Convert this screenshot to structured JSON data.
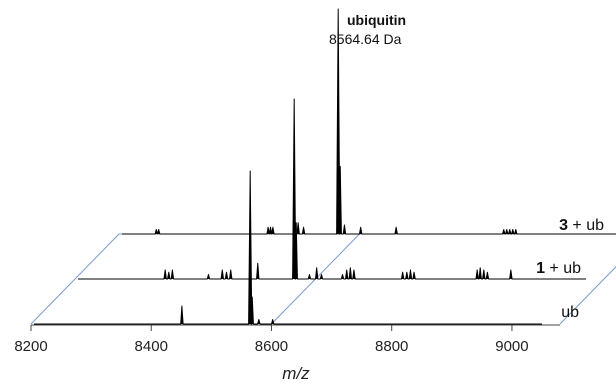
{
  "chart_data": {
    "type": "line",
    "subtype": "stacked 3D mass spectra",
    "xlabel": "m/z",
    "xlim": [
      8200,
      9050
    ],
    "x_ticks": [
      "8200",
      "8400",
      "8600",
      "8800",
      "9000"
    ],
    "x_tick_values": [
      8200,
      8400,
      8600,
      8800,
      9000
    ],
    "frame_color": "#7a9ccf",
    "trace_color": "#000000",
    "series": [
      {
        "name": "ub",
        "label_prefix": "",
        "label_suffix": "ub",
        "peaks": [
          {
            "mz": 8451,
            "rel": 0.08
          },
          {
            "mz": 8564.6,
            "rel": 0.68
          },
          {
            "mz": 8568,
            "rel": 0.12
          },
          {
            "mz": 8579,
            "rel": 0.02
          },
          {
            "mz": 8602,
            "rel": 0.02
          }
        ]
      },
      {
        "name": "1 + ub",
        "label_prefix": "1",
        "label_suffix": " + ub",
        "peaks": [
          {
            "mz": 8350,
            "rel": 0.04
          },
          {
            "mz": 8356,
            "rel": 0.03
          },
          {
            "mz": 8362,
            "rel": 0.04
          },
          {
            "mz": 8422,
            "rel": 0.02
          },
          {
            "mz": 8445,
            "rel": 0.04
          },
          {
            "mz": 8452,
            "rel": 0.03
          },
          {
            "mz": 8459,
            "rel": 0.04
          },
          {
            "mz": 8504,
            "rel": 0.07
          },
          {
            "mz": 8564.6,
            "rel": 0.8
          },
          {
            "mz": 8568,
            "rel": 0.25
          },
          {
            "mz": 8590,
            "rel": 0.02
          },
          {
            "mz": 8602,
            "rel": 0.05
          },
          {
            "mz": 8610,
            "rel": 0.02
          },
          {
            "mz": 8645,
            "rel": 0.02
          },
          {
            "mz": 8652,
            "rel": 0.04
          },
          {
            "mz": 8658,
            "rel": 0.05
          },
          {
            "mz": 8664,
            "rel": 0.04
          },
          {
            "mz": 8745,
            "rel": 0.03
          },
          {
            "mz": 8752,
            "rel": 0.03
          },
          {
            "mz": 8758,
            "rel": 0.04
          },
          {
            "mz": 8764,
            "rel": 0.03
          },
          {
            "mz": 8869,
            "rel": 0.04
          },
          {
            "mz": 8874,
            "rel": 0.05
          },
          {
            "mz": 8880,
            "rel": 0.04
          },
          {
            "mz": 8886,
            "rel": 0.03
          },
          {
            "mz": 8925,
            "rel": 0.04
          }
        ]
      },
      {
        "name": "3 + ub",
        "label_prefix": "3",
        "label_suffix": " + ub",
        "peaks": [
          {
            "mz": 8262,
            "rel": 0.02
          },
          {
            "mz": 8266,
            "rel": 0.02
          },
          {
            "mz": 8448,
            "rel": 0.03
          },
          {
            "mz": 8452,
            "rel": 0.03
          },
          {
            "mz": 8456,
            "rel": 0.03
          },
          {
            "mz": 8498,
            "rel": 0.05
          },
          {
            "mz": 8507,
            "rel": 0.03
          },
          {
            "mz": 8564.6,
            "rel": 1.0
          },
          {
            "mz": 8568,
            "rel": 0.3
          },
          {
            "mz": 8575,
            "rel": 0.04
          },
          {
            "mz": 8602,
            "rel": 0.03
          },
          {
            "mz": 8661,
            "rel": 0.03
          },
          {
            "mz": 8840,
            "rel": 0.02
          },
          {
            "mz": 8845,
            "rel": 0.02
          },
          {
            "mz": 8850,
            "rel": 0.02
          },
          {
            "mz": 8855,
            "rel": 0.02
          },
          {
            "mz": 8860,
            "rel": 0.02
          }
        ]
      }
    ],
    "annotation": {
      "name": "ubiquitin",
      "mass": "8564.64 Da"
    }
  }
}
